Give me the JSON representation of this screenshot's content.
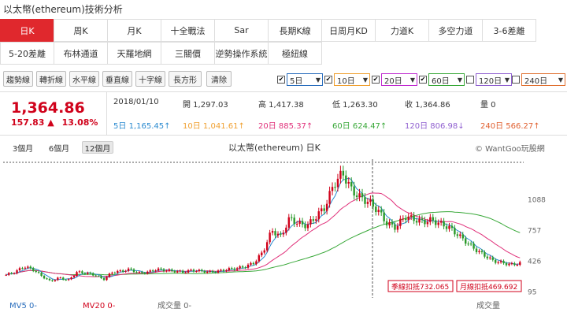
{
  "page_title": "以太幣(ethereum)技術分析",
  "tabs_row1": [
    "日K",
    "周K",
    "月K",
    "十全戰法",
    "Sar",
    "長期K線",
    "日周月KD",
    "力道K",
    "多空力道",
    "3-6差離"
  ],
  "tabs_row2": [
    "5-20差離",
    "布林通道",
    "天羅地網",
    "三關價",
    "逆勢操作系統",
    "極紐線"
  ],
  "tools": [
    "趨勢線",
    "轉折線",
    "水平線",
    "垂直線",
    "十字線",
    "長方形",
    "清除"
  ],
  "ma_selects": [
    {
      "label": "5日",
      "checked": true,
      "color": "#2a6ebd"
    },
    {
      "label": "10日",
      "checked": true,
      "color": "#f0a030"
    },
    {
      "label": "20日",
      "checked": true,
      "color": "#c02ad0"
    },
    {
      "label": "60日",
      "checked": true,
      "color": "#38a838"
    },
    {
      "label": "120日",
      "checked": false,
      "color": "#9060d0"
    },
    {
      "label": "240日",
      "checked": false,
      "color": "#e07030"
    }
  ],
  "price": {
    "last": "1,364.86",
    "change": "157.83",
    "change_arrow": "▲",
    "change_pct": "13.08%",
    "date": "2018/01/10",
    "open": "開 1,297.03",
    "high": "高 1,417.38",
    "low": "低 1,263.30",
    "close": "收 1,364.86",
    "volume": "量 0"
  },
  "ma_values": [
    {
      "label": "5日",
      "value": "1,165.45↑",
      "color": "#2a8ad0"
    },
    {
      "label": "10日",
      "value": "1,041.61↑",
      "color": "#f0a030"
    },
    {
      "label": "20日",
      "value": "885.37↑",
      "color": "#e0307a"
    },
    {
      "label": "60日",
      "value": "624.47↑",
      "color": "#38a838"
    },
    {
      "label": "120日",
      "value": "806.98↓",
      "color": "#9060d0"
    },
    {
      "label": "240日",
      "value": "566.27↑",
      "color": "#e06030"
    }
  ],
  "ranges": [
    "3個月",
    "6個月",
    "12個月"
  ],
  "active_range": "12個月",
  "chart_title": "以太幣(ethereum) 日K",
  "brand": "© WantGoo玩股網",
  "chart_data": {
    "type": "candlestick",
    "y_ticks": [
      "1088",
      "757",
      "426",
      "95"
    ],
    "y_tick_values": [
      1088,
      757,
      426,
      95
    ],
    "ylim": [
      40,
      1480
    ],
    "closes": [
      270,
      300,
      360,
      330,
      260,
      200,
      240,
      210,
      300,
      290,
      270,
      220,
      300,
      310,
      330,
      290,
      300,
      330,
      320,
      310,
      300,
      320,
      310,
      300,
      310,
      330,
      340,
      360,
      400,
      520,
      750,
      680,
      880,
      820,
      800,
      900,
      1000,
      1250,
      1365,
      1180,
      1100,
      1050,
      960,
      820,
      780,
      900,
      870,
      840,
      860,
      820,
      780,
      700,
      620,
      540,
      480,
      420,
      400,
      380,
      395
    ],
    "annotation_left": "季線扣抵732.065",
    "annotation_right": "月線扣抵469.692",
    "bottom_labels": [
      "MV5 0-",
      "MV20 0-",
      "成交量 0-",
      "成交量"
    ]
  }
}
